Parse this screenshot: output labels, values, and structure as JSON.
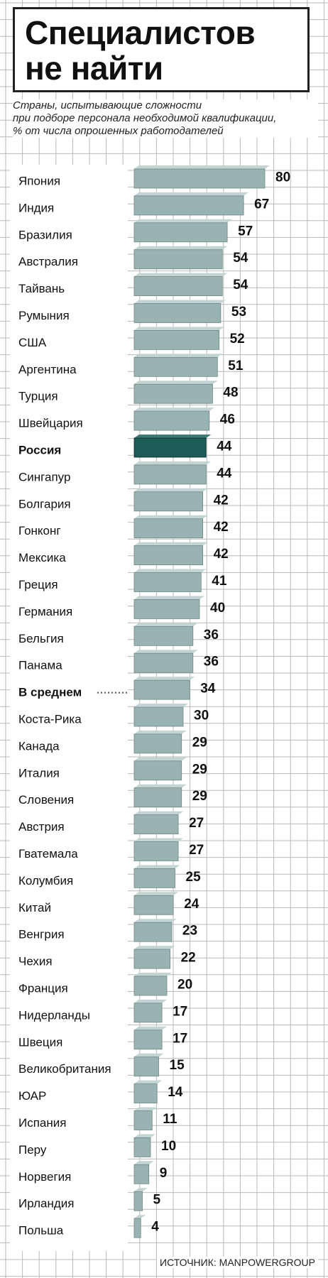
{
  "chart_data": {
    "type": "bar",
    "title_lines": [
      "Специалистов",
      "не найти"
    ],
    "subtitle_lines": [
      "Страны, испытывающие сложности",
      "при подборе персонала необходимой квалификации,",
      "% от числа опрошенных работодателей"
    ],
    "source": "ИСТОЧНИК: MANPOWERGROUP",
    "categories": [
      "Япония",
      "Индия",
      "Бразилия",
      "Австралия",
      "Тайвань",
      "Румыния",
      "США",
      "Аргентина",
      "Турция",
      "Швейцария",
      "Россия",
      "Сингапур",
      "Болгария",
      "Гонконг",
      "Мексика",
      "Греция",
      "Германия",
      "Бельгия",
      "Панама",
      "В среднем",
      "Коста-Рика",
      "Канада",
      "Италия",
      "Словения",
      "Австрия",
      "Гватемала",
      "Колумбия",
      "Китай",
      "Венгрия",
      "Чехия",
      "Франция",
      "Нидерланды",
      "Швеция",
      "Великобритания",
      "ЮАР",
      "Испания",
      "Перу",
      "Норвегия",
      "Ирландия",
      "Польша"
    ],
    "values": [
      80,
      67,
      57,
      54,
      54,
      53,
      52,
      51,
      48,
      46,
      44,
      44,
      42,
      42,
      42,
      41,
      40,
      36,
      36,
      34,
      30,
      29,
      29,
      29,
      27,
      27,
      25,
      24,
      23,
      22,
      20,
      17,
      17,
      15,
      14,
      11,
      10,
      9,
      5,
      4
    ],
    "highlight": "Россия",
    "average": "В среднем",
    "colors": {
      "bar_face": "#98b3b1",
      "bar_side": "#5d7674",
      "bar_top": "#c3d5d3",
      "highlight_face": "#1c5b56",
      "highlight_side": "#0e3835",
      "highlight_top": "#3f7b75",
      "grid": "#b9b9b9",
      "text": "#111111"
    },
    "grid": true,
    "xlim": [
      0,
      80
    ]
  }
}
